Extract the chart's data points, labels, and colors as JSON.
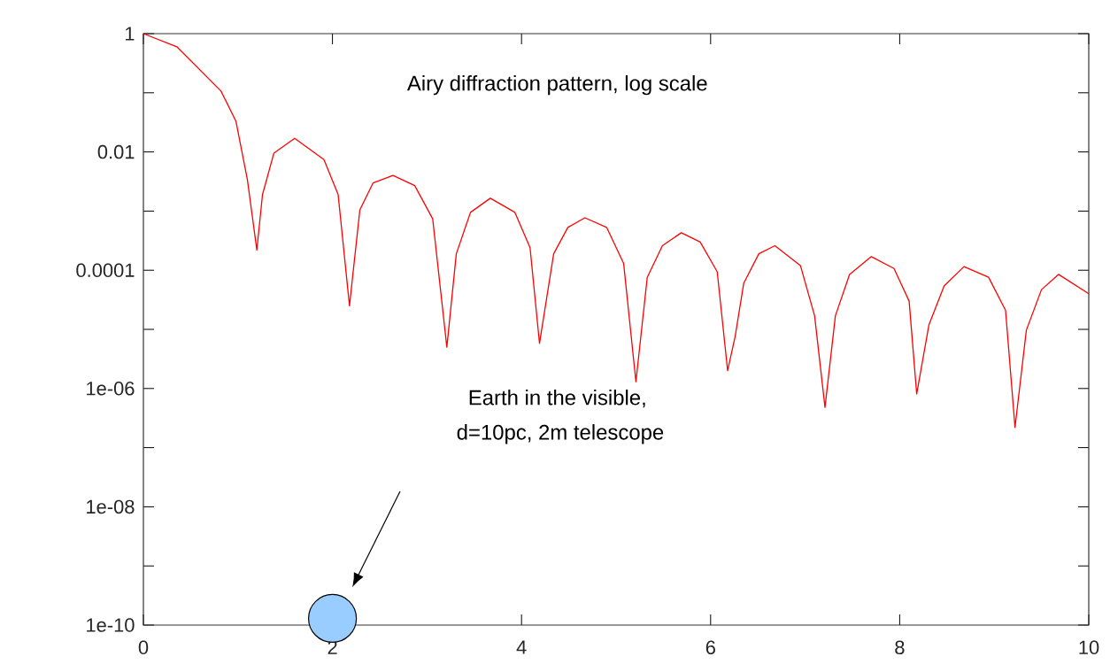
{
  "chart_data": {
    "type": "line",
    "log": true,
    "xlim": [
      0,
      10
    ],
    "ylim": [
      1e-10,
      1
    ],
    "xticks": [
      0,
      2,
      4,
      6,
      8,
      10
    ],
    "yticks": [
      1,
      {
        "value": 0.1,
        "label": null
      },
      0.01,
      {
        "value": 0.001,
        "label": null
      },
      0.0001,
      {
        "value": 1e-05,
        "label": null
      },
      {
        "value": 1e-06,
        "label": "1e-06"
      },
      {
        "value": 1e-07,
        "label": null
      },
      {
        "value": 1e-08,
        "label": "1e-08"
      },
      {
        "value": 1e-09,
        "label": null
      },
      {
        "value": 1e-10,
        "label": "1e-10"
      }
    ],
    "annotations": [
      "Airy diffraction pattern, log scale",
      "Earth in the visible,",
      "d=10pc, 2m telescope"
    ],
    "series": [
      {
        "color": "#ff0000",
        "marker": "none",
        "x": [
          0,
          0.354,
          0.821,
          0.979,
          1.1,
          1.2,
          1.26,
          1.38,
          1.6,
          1.91,
          2.06,
          2.18,
          2.29,
          2.43,
          2.64,
          2.87,
          3.06,
          3.21,
          3.31,
          3.46,
          3.67,
          3.93,
          4.09,
          4.19,
          4.34,
          4.49,
          4.67,
          4.9,
          5.08,
          5.21,
          5.33,
          5.49,
          5.69,
          5.89,
          6.07,
          6.18,
          6.26,
          6.35,
          6.51,
          6.68,
          6.95,
          7.1,
          7.21,
          7.32,
          7.47,
          7.7,
          7.94,
          8.1,
          8.18,
          8.31,
          8.47,
          8.68,
          8.94,
          9.12,
          9.22,
          9.34,
          9.5,
          9.68,
          10
        ],
        "values": [
          1,
          0.6,
          0.107,
          0.033,
          0.0034,
          0.00022,
          0.0019,
          0.0095,
          0.017,
          0.0074,
          0.0019,
          2.5e-05,
          0.00105,
          0.003,
          0.004,
          0.0027,
          0.00074,
          5e-06,
          0.00019,
          0.00095,
          0.00165,
          0.00095,
          0.00024,
          5.8e-06,
          0.00019,
          0.00053,
          0.00077,
          0.00053,
          0.00013,
          1.3e-06,
          7.6e-05,
          0.00026,
          0.00043,
          0.0003,
          9.4e-05,
          2e-06,
          7.6e-06,
          6e-05,
          0.00019,
          0.00026,
          0.00012,
          1.7e-05,
          4.8e-07,
          1.7e-05,
          8.5e-05,
          0.00017,
          0.000107,
          3e-05,
          8.1e-07,
          1.2e-05,
          5.4e-05,
          0.000115,
          7.6e-05,
          2.1e-05,
          2.2e-07,
          9.7e-06,
          4.7e-05,
          8.5e-05,
          4e-05
        ]
      },
      {
        "type": "scatter",
        "color": "#99ccff",
        "marker": "circle",
        "x": [
          2
        ],
        "values": [
          1.3e-10
        ]
      }
    ]
  }
}
